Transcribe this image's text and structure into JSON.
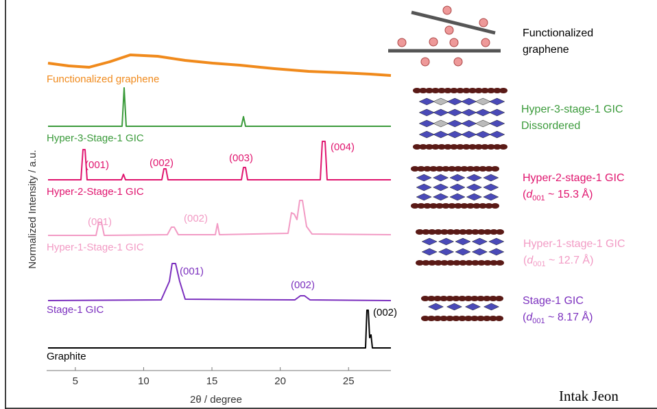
{
  "plot": {
    "y_axis_label": "Normalized  Intensity / a.u.",
    "x_axis_label": "2θ / degree",
    "xlim": [
      3,
      28
    ],
    "xticks": [
      5,
      10,
      15,
      20,
      25
    ],
    "traces": [
      {
        "name": "Functionalized graphene",
        "color": "#f08a1c",
        "peaks": []
      },
      {
        "name": "Hyper-3-Stage-1 GIC",
        "color": "#3a9a3a",
        "peaks": []
      },
      {
        "name": "Hyper-2-Stage-1 GIC",
        "color": "#e0146e",
        "peaks": [
          "(001)",
          "(002)",
          "(003)",
          "(004)"
        ]
      },
      {
        "name": "Hyper-1-Stage-1 GIC",
        "color": "#f29ac4",
        "peaks": [
          "(001)",
          "(002)"
        ]
      },
      {
        "name": "Stage-1 GIC",
        "color": "#7b2fbe",
        "peaks": [
          "(001)",
          "(002)"
        ]
      },
      {
        "name": "Graphite",
        "color": "#000000",
        "peaks": [
          "(002)"
        ]
      }
    ]
  },
  "legend": [
    {
      "lines": [
        "Functionalized",
        "graphene"
      ],
      "color": "#000000"
    },
    {
      "lines": [
        "Hyper-3-stage-1 GIC",
        "Dissordered"
      ],
      "color": "#3a9a3a"
    },
    {
      "lines": [
        "Hyper-2-stage-1 GIC"
      ],
      "spacing": [
        "(",
        "d",
        "001",
        " ~ 15.3 Å)"
      ],
      "color": "#e0146e"
    },
    {
      "lines": [
        "Hyper-1-stage-1 GIC"
      ],
      "spacing": [
        "(",
        "d",
        "001",
        " ~ 12.7 Å)"
      ],
      "color": "#f29ac4"
    },
    {
      "lines": [
        "Stage-1 GIC"
      ],
      "spacing": [
        "(",
        "d",
        "001",
        " ~ 8.17 Å)"
      ],
      "color": "#7b2fbe"
    }
  ],
  "author": "Intak Jeon"
}
